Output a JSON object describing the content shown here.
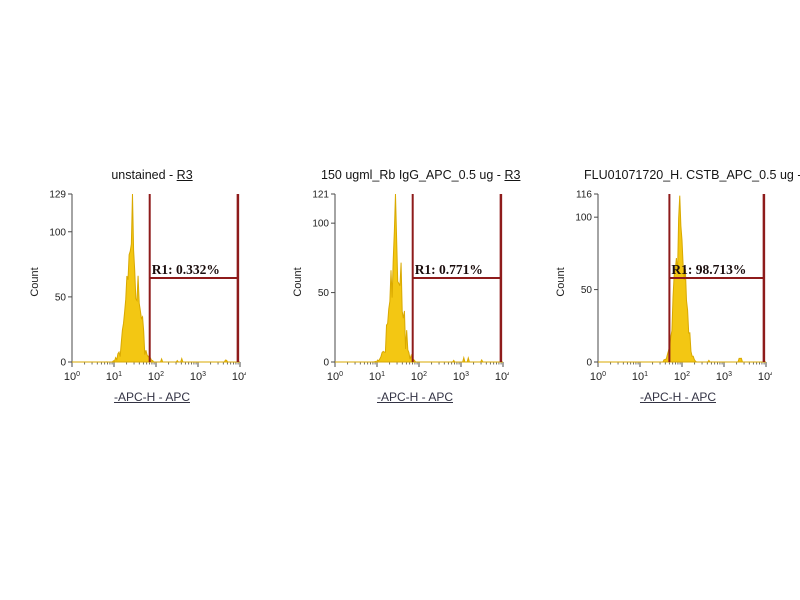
{
  "colors": {
    "hist_fill": "#f3c713",
    "hist_stroke": "#d9a900",
    "gate": "#8e1b1b",
    "axis": "#4a4a4a",
    "tick_text": "#222222",
    "gate_text": "#1a0d0d"
  },
  "chart_data": [
    {
      "type": "histogram",
      "title": "unstained - ",
      "title_link": "R3",
      "ylabel": "Count",
      "xlabel": "-APC-H - APC",
      "ymax": 129,
      "yticks": [
        0,
        50,
        100,
        129
      ],
      "xtick_base": "10",
      "xtick_exponents": [
        "0",
        "1",
        "2",
        "3",
        "4"
      ],
      "x_decade_range": [
        0,
        4
      ],
      "gate": {
        "name": "R1",
        "label": "R1: 0.332%",
        "from_decade": 1.85,
        "to_decade": 3.95,
        "level_frac": 0.5
      },
      "peak": {
        "center_decade": 1.45,
        "sigma_decades": 0.16,
        "height_frac": 0.74,
        "spike_frac": 1.0
      },
      "noise_seed": 7
    },
    {
      "type": "histogram",
      "title": "150 ugml_Rb IgG_APC_0.5 ug - ",
      "title_link": "R3",
      "ylabel": "Count",
      "xlabel": "-APC-H - APC",
      "ymax": 121,
      "yticks": [
        0,
        50,
        100,
        121
      ],
      "xtick_base": "10",
      "xtick_exponents": [
        "0",
        "1",
        "2",
        "3",
        "4"
      ],
      "x_decade_range": [
        0,
        4
      ],
      "gate": {
        "name": "R1",
        "label": "R1: 0.771%",
        "from_decade": 1.85,
        "to_decade": 3.95,
        "level_frac": 0.5
      },
      "peak": {
        "center_decade": 1.45,
        "sigma_decades": 0.15,
        "height_frac": 0.82,
        "spike_frac": 1.0
      },
      "noise_seed": 13
    },
    {
      "type": "histogram",
      "title": "FLU01071720_H. CSTB_APC_0.5 ug -...",
      "title_link": "",
      "ylabel": "Count",
      "xlabel": "-APC-H - APC",
      "ymax": 116,
      "yticks": [
        0,
        50,
        100,
        116
      ],
      "xtick_base": "10",
      "xtick_exponents": [
        "0",
        "1",
        "2",
        "3",
        "4"
      ],
      "x_decade_range": [
        0,
        4
      ],
      "gate": {
        "name": "R1",
        "label": "R1: 98.713%",
        "from_decade": 1.7,
        "to_decade": 3.95,
        "level_frac": 0.5
      },
      "peak": {
        "center_decade": 1.95,
        "sigma_decades": 0.13,
        "height_frac": 0.9,
        "spike_frac": 0.99
      },
      "noise_seed": 21
    }
  ]
}
